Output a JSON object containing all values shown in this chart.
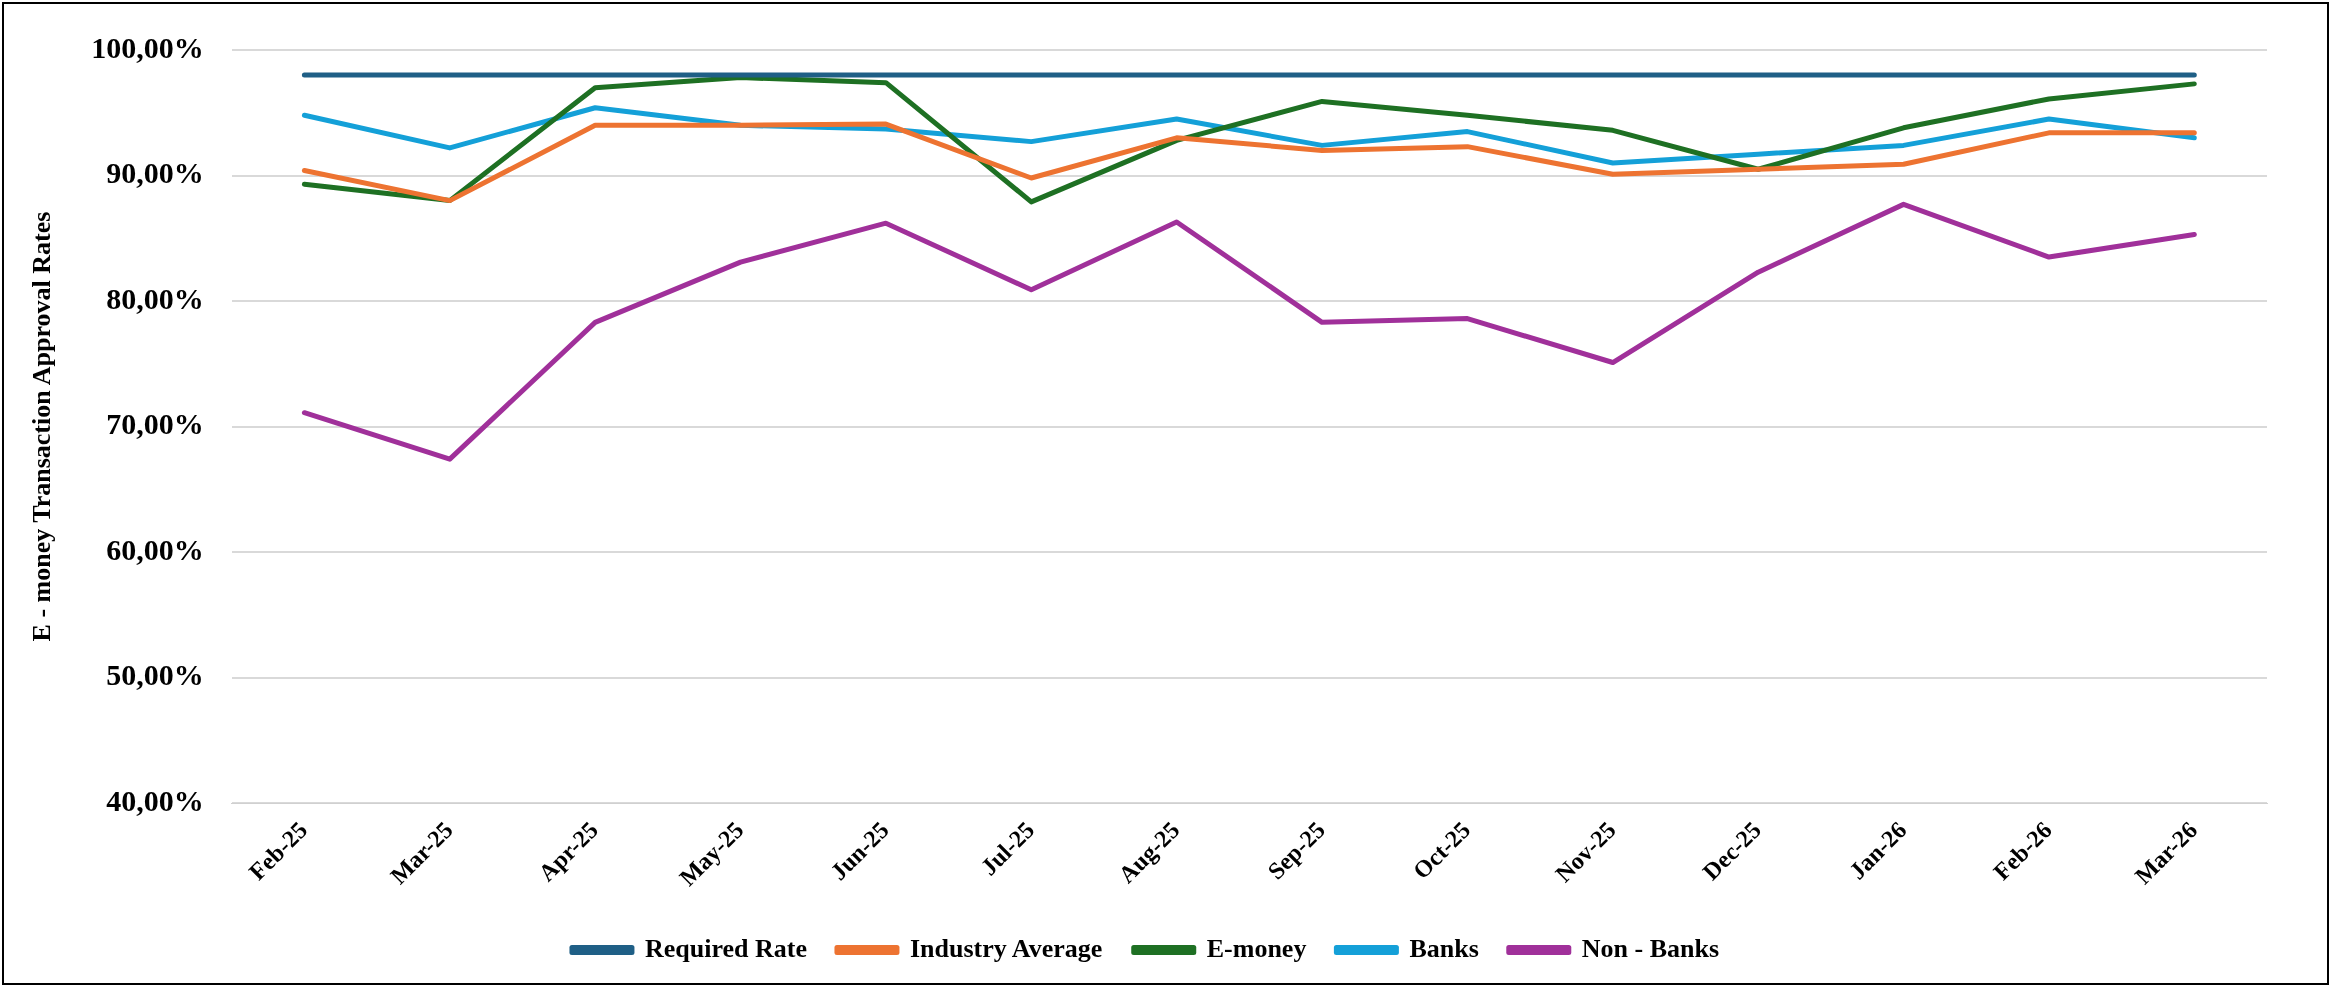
{
  "chart_data": {
    "type": "line",
    "ylabel": "E - money Transaction Approval Rates",
    "categories": [
      "Feb-25",
      "Mar-25",
      "Apr-25",
      "May-25",
      "Jun-25",
      "Jul-25",
      "Aug-25",
      "Sep-25",
      "Oct-25",
      "Nov-25",
      "Dec-25",
      "Jan-26",
      "Feb-26",
      "Mar-26"
    ],
    "series": [
      {
        "name": "Required Rate",
        "color": "#1f5f86",
        "values": [
          98,
          98,
          98,
          98,
          98,
          98,
          98,
          98,
          98,
          98,
          98,
          98,
          98,
          98
        ]
      },
      {
        "name": "Industry Average",
        "color": "#ed7331",
        "values": [
          90.4,
          88.0,
          94.0,
          94.0,
          94.1,
          89.8,
          93.0,
          92.0,
          92.3,
          90.1,
          90.5,
          90.9,
          93.4,
          93.4
        ]
      },
      {
        "name": "E-money",
        "color": "#1e7023",
        "values": [
          89.3,
          88.0,
          97.0,
          97.8,
          97.4,
          87.9,
          92.8,
          95.9,
          94.8,
          93.6,
          90.5,
          93.8,
          96.1,
          97.3
        ]
      },
      {
        "name": "Banks",
        "color": "#14a0d8",
        "values": [
          94.8,
          92.2,
          95.4,
          94.0,
          93.7,
          92.7,
          94.5,
          92.4,
          93.5,
          91.0,
          91.7,
          92.4,
          94.5,
          93.0
        ]
      },
      {
        "name": "Non - Banks",
        "color": "#a0309a",
        "values": [
          71.1,
          67.4,
          78.3,
          83.1,
          86.2,
          80.9,
          86.3,
          78.3,
          78.6,
          75.1,
          82.3,
          87.7,
          83.5,
          85.3
        ]
      }
    ],
    "ylim": [
      40,
      100
    ],
    "yticks": [
      {
        "value": 40,
        "label": "40,00%"
      },
      {
        "value": 50,
        "label": "50,00%"
      },
      {
        "value": 60,
        "label": "60,00%"
      },
      {
        "value": 70,
        "label": "70,00%"
      },
      {
        "value": 80,
        "label": "80,00%"
      },
      {
        "value": 90,
        "label": "90,00%"
      },
      {
        "value": 100,
        "label": "100,00%"
      }
    ],
    "grid": "y",
    "legend": "bottom",
    "marker": "none",
    "line_style": "solid"
  }
}
